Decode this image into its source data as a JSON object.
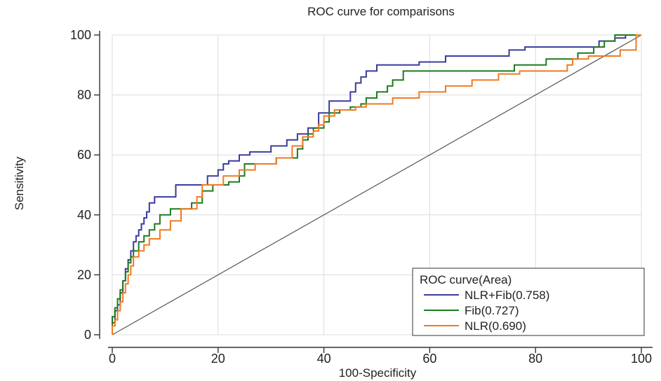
{
  "chart_data": {
    "type": "line",
    "title": "ROC curve for comparisons",
    "xlabel": "100-Specificity",
    "ylabel": "Sensitivity",
    "xlim": [
      0,
      100
    ],
    "ylim": [
      0,
      100
    ],
    "xticks": [
      0,
      20,
      40,
      60,
      80,
      100
    ],
    "yticks": [
      0,
      20,
      40,
      60,
      80,
      100
    ],
    "grid": true,
    "legend_title": "ROC curve(Area)",
    "legend_position": "bottom-right",
    "reference_line": {
      "x": [
        0,
        100
      ],
      "y": [
        0,
        100
      ],
      "color": "#555555"
    },
    "series": [
      {
        "name": "NLR+Fib(0.758)",
        "color": "#3b3b9e",
        "x": [
          0,
          0,
          0.5,
          0.5,
          1,
          1,
          1.5,
          1.5,
          2,
          2,
          2.5,
          2.5,
          3,
          3,
          3.5,
          3.5,
          4,
          4,
          4.5,
          4.5,
          5,
          5,
          5.5,
          5.5,
          6,
          6,
          6.5,
          6.5,
          7,
          7,
          8,
          8,
          12,
          12,
          18,
          18,
          20,
          20,
          21,
          21,
          22,
          22,
          24,
          24,
          26,
          26,
          30,
          30,
          33,
          33,
          35,
          35,
          37,
          37,
          39,
          39,
          41,
          41,
          45,
          45,
          46,
          46,
          47,
          47,
          48,
          48,
          50,
          50,
          53,
          53,
          58,
          58,
          63,
          63,
          75,
          75,
          78,
          78,
          80,
          80,
          92,
          92,
          95,
          95,
          97,
          97,
          100
        ],
        "y": [
          0,
          4,
          4,
          8,
          8,
          10,
          10,
          14,
          14,
          18,
          18,
          22,
          22,
          25,
          25,
          28,
          28,
          31,
          31,
          33,
          33,
          35,
          35,
          37,
          37,
          39,
          39,
          41,
          41,
          44,
          44,
          46,
          46,
          50,
          50,
          53,
          53,
          55,
          55,
          57,
          57,
          58,
          58,
          60,
          60,
          61,
          61,
          63,
          63,
          65,
          65,
          67,
          67,
          69,
          69,
          74,
          74,
          78,
          78,
          81,
          81,
          84,
          84,
          86,
          86,
          88,
          88,
          90,
          90,
          90,
          90,
          91,
          91,
          93,
          93,
          95,
          95,
          96,
          96,
          96,
          96,
          98,
          98,
          99,
          99,
          100,
          100
        ]
      },
      {
        "name": "Fib(0.727)",
        "color": "#1f7a1f",
        "x": [
          0,
          0,
          0.5,
          0.5,
          1,
          1,
          1.5,
          1.5,
          2,
          2,
          2.5,
          2.5,
          3,
          3,
          3.5,
          3.5,
          4,
          4,
          5,
          5,
          6,
          6,
          7,
          7,
          8,
          8,
          9,
          9,
          11,
          11,
          15,
          15,
          17,
          17,
          19,
          19,
          22,
          22,
          24,
          24,
          25,
          25,
          28,
          28,
          31,
          31,
          35,
          35,
          36,
          36,
          37,
          37,
          38,
          38,
          40,
          40,
          41,
          41,
          43,
          43,
          45,
          45,
          47,
          47,
          48,
          48,
          50,
          50,
          52,
          52,
          53,
          53,
          55,
          55,
          58,
          58,
          76,
          76,
          78,
          78,
          82,
          82,
          88,
          88,
          91,
          91,
          93,
          93,
          95,
          95,
          100
        ],
        "y": [
          0,
          6,
          6,
          9,
          9,
          12,
          12,
          15,
          15,
          18,
          18,
          21,
          21,
          24,
          24,
          26,
          26,
          28,
          28,
          31,
          31,
          33,
          33,
          35,
          35,
          37,
          37,
          40,
          40,
          42,
          42,
          44,
          44,
          48,
          48,
          50,
          50,
          51,
          51,
          53,
          53,
          57,
          57,
          57,
          57,
          59,
          59,
          62,
          62,
          65,
          65,
          67,
          67,
          69,
          69,
          71,
          71,
          74,
          74,
          75,
          75,
          76,
          76,
          77,
          77,
          79,
          79,
          81,
          81,
          83,
          83,
          85,
          85,
          88,
          88,
          88,
          88,
          90,
          90,
          90,
          90,
          92,
          92,
          94,
          94,
          96,
          96,
          98,
          98,
          100,
          100
        ]
      },
      {
        "name": "NLR(0.690)",
        "color": "#f07a20",
        "x": [
          0,
          0,
          0.5,
          0.5,
          1,
          1,
          1.5,
          1.5,
          2,
          2,
          2.5,
          2.5,
          3,
          3,
          3.5,
          3.5,
          4,
          4,
          5,
          5,
          6,
          6,
          7,
          7,
          9,
          9,
          11,
          11,
          13,
          13,
          16,
          16,
          17,
          17,
          21,
          21,
          24,
          24,
          27,
          27,
          31,
          31,
          34,
          34,
          36,
          36,
          38,
          38,
          39,
          39,
          40,
          40,
          42,
          42,
          46,
          46,
          48,
          48,
          53,
          53,
          58,
          58,
          63,
          63,
          68,
          68,
          73,
          73,
          77,
          77,
          80,
          80,
          85,
          85,
          86,
          86,
          87,
          87,
          88,
          88,
          90,
          90,
          96,
          96,
          99,
          99,
          100
        ],
        "y": [
          0,
          3,
          3,
          5,
          5,
          8,
          8,
          11,
          11,
          14,
          14,
          17,
          17,
          20,
          20,
          23,
          23,
          26,
          26,
          28,
          28,
          30,
          30,
          32,
          32,
          35,
          35,
          38,
          38,
          42,
          42,
          46,
          46,
          50,
          50,
          53,
          53,
          55,
          55,
          57,
          57,
          59,
          59,
          63,
          63,
          66,
          66,
          68,
          68,
          70,
          70,
          73,
          73,
          75,
          75,
          76,
          76,
          77,
          77,
          79,
          79,
          81,
          81,
          83,
          83,
          85,
          85,
          87,
          87,
          88,
          88,
          88,
          88,
          88,
          88,
          90,
          90,
          92,
          92,
          92,
          92,
          93,
          93,
          95,
          95,
          100,
          100
        ]
      }
    ]
  }
}
